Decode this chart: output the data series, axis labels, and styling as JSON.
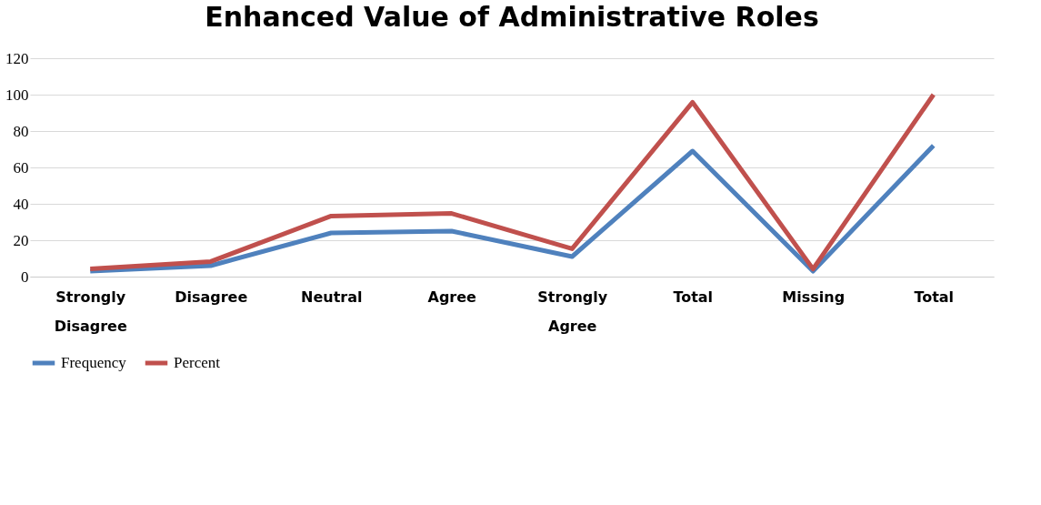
{
  "chart_data": {
    "type": "line",
    "title": "Enhanced Value of Administrative Roles",
    "categories": [
      "Strongly Disagree",
      "Disagree",
      "Neutral",
      "Agree",
      "Strongly Agree",
      "Total",
      "Missing",
      "Total"
    ],
    "series": [
      {
        "name": "Frequency",
        "color": "#4f81bd",
        "values": [
          3,
          6,
          24,
          25,
          11,
          69,
          3,
          72
        ]
      },
      {
        "name": "Percent",
        "color": "#c0504d",
        "values": [
          4.2,
          8.3,
          33.3,
          34.7,
          15.3,
          95.8,
          4.2,
          100.0
        ]
      }
    ],
    "ylim": [
      0,
      120
    ],
    "yticks": [
      0,
      20,
      40,
      60,
      80,
      100,
      120
    ],
    "grid": "y",
    "legend": "bottom",
    "marker": "none",
    "line_style": "solid"
  }
}
